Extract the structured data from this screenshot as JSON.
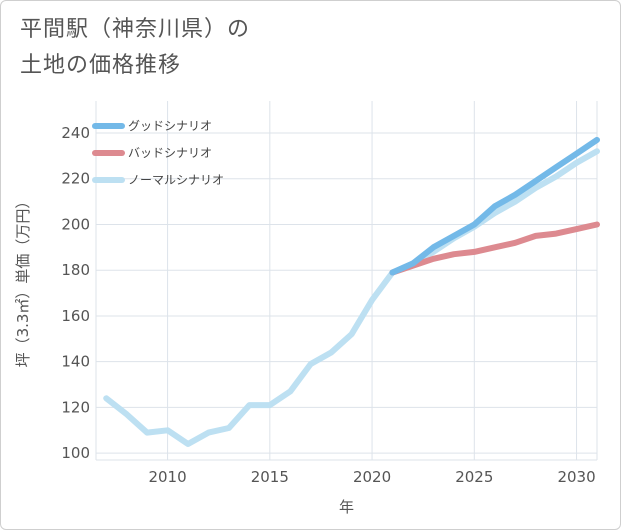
{
  "title_line1": "平間駅（神奈川県）の",
  "title_line2": "土地の価格推移",
  "chart_data": {
    "type": "line",
    "xlabel": "年",
    "ylabel": "坪（3.3㎡）単価（万円）",
    "xlim": [
      2006.5,
      2031
    ],
    "ylim": [
      97,
      254
    ],
    "x_ticks": [
      2010,
      2015,
      2020,
      2025,
      2030
    ],
    "y_ticks": [
      100,
      120,
      140,
      160,
      180,
      200,
      220,
      240
    ],
    "grid": true,
    "legend_position": "top-left",
    "series": [
      {
        "name": "グッドシナリオ",
        "color": "#73b9e8",
        "width": 6,
        "x": [
          2021,
          2022,
          2023,
          2024,
          2025,
          2026,
          2027,
          2028,
          2029,
          2030,
          2031
        ],
        "y": [
          179,
          183,
          190,
          195,
          200,
          208,
          213,
          219,
          225,
          231,
          237
        ]
      },
      {
        "name": "バッドシナリオ",
        "color": "#dd8a90",
        "width": 6,
        "x": [
          2021,
          2022,
          2023,
          2024,
          2025,
          2026,
          2027,
          2028,
          2029,
          2030,
          2031
        ],
        "y": [
          179,
          182,
          185,
          187,
          188,
          190,
          192,
          195,
          196,
          198,
          200
        ]
      },
      {
        "name": "ノーマルシナリオ",
        "color": "#bde0f2",
        "width": 6,
        "x": [
          2007,
          2008,
          2009,
          2010,
          2011,
          2012,
          2013,
          2014,
          2015,
          2016,
          2017,
          2018,
          2019,
          2020,
          2021,
          2022,
          2023,
          2024,
          2025,
          2026,
          2027,
          2028,
          2029,
          2030,
          2031
        ],
        "y": [
          124,
          117,
          109,
          110,
          104,
          109,
          111,
          121,
          121,
          127,
          139,
          144,
          152,
          167,
          179,
          183,
          188,
          194,
          199,
          205,
          210,
          216,
          221,
          227,
          232
        ]
      }
    ]
  }
}
